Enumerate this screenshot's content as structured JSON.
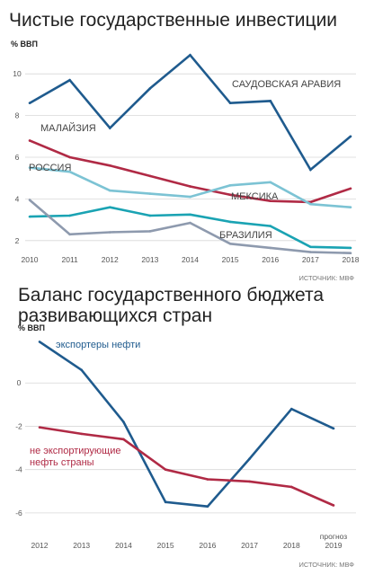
{
  "chart_data": [
    {
      "type": "line",
      "title": "Чистые государственные инвестиции",
      "ylabel": "% ВВП",
      "ylim": [
        1,
        11
      ],
      "y_ticks": [
        "2",
        "4",
        "6",
        "8",
        "10"
      ],
      "x": [
        "2010",
        "2011",
        "2012",
        "2013",
        "2014",
        "2015",
        "2016",
        "2017",
        "2018"
      ],
      "source": "ИСТОЧНИК: МВФ",
      "series": [
        {
          "name": "САУДОВСКАЯ АРАВИЯ",
          "color": "#1f5b8e",
          "values": [
            8.6,
            9.7,
            7.4,
            9.3,
            10.9,
            8.6,
            8.7,
            5.4,
            7.0
          ]
        },
        {
          "name": "МАЛАЙЗИЯ",
          "color": "#b02a45",
          "values": [
            6.8,
            6.0,
            5.6,
            5.1,
            4.6,
            4.2,
            3.9,
            3.85,
            4.5
          ]
        },
        {
          "name": "РОССИЯ",
          "color": "#7cc3d4",
          "values": [
            5.5,
            5.3,
            4.4,
            4.25,
            4.1,
            4.65,
            4.8,
            3.75,
            3.6
          ]
        },
        {
          "name": "МЕКСИКА",
          "color": "#1aa3b3",
          "values": [
            3.15,
            3.2,
            3.6,
            3.2,
            3.25,
            2.9,
            2.7,
            1.7,
            1.65
          ]
        },
        {
          "name": "БРАЗИЛИЯ",
          "color": "#8e9aae",
          "values": [
            3.95,
            2.3,
            2.4,
            2.45,
            2.85,
            1.85,
            1.65,
            1.45,
            1.4
          ]
        }
      ]
    },
    {
      "type": "line",
      "title": "Баланс государственного бюджета развивающихся стран",
      "title_lines": [
        "Баланс государственного бюджета",
        "развивающихся стран"
      ],
      "ylabel": "% ВВП",
      "ylim": [
        -7,
        2
      ],
      "y_ticks": [
        "0",
        "-2",
        "-4",
        "-6"
      ],
      "x": [
        "2012",
        "2013",
        "2014",
        "2015",
        "2016",
        "2017",
        "2018",
        "2019"
      ],
      "forecast_note": "прогноз",
      "source": "ИСТОЧНИК: МВФ",
      "series": [
        {
          "name": "экспортеры нефти",
          "color": "#1f5b8e",
          "values": [
            1.9,
            0.6,
            -1.8,
            -5.5,
            -5.7,
            -3.5,
            -1.2,
            -2.1
          ]
        },
        {
          "name": "не экспортирующие нефть страны",
          "name_lines": [
            "не экспортирующие",
            "нефть страны"
          ],
          "color": "#b02a45",
          "values": [
            -2.05,
            -2.35,
            -2.6,
            -4.0,
            -4.45,
            -4.55,
            -4.8,
            -5.65
          ]
        }
      ]
    }
  ]
}
